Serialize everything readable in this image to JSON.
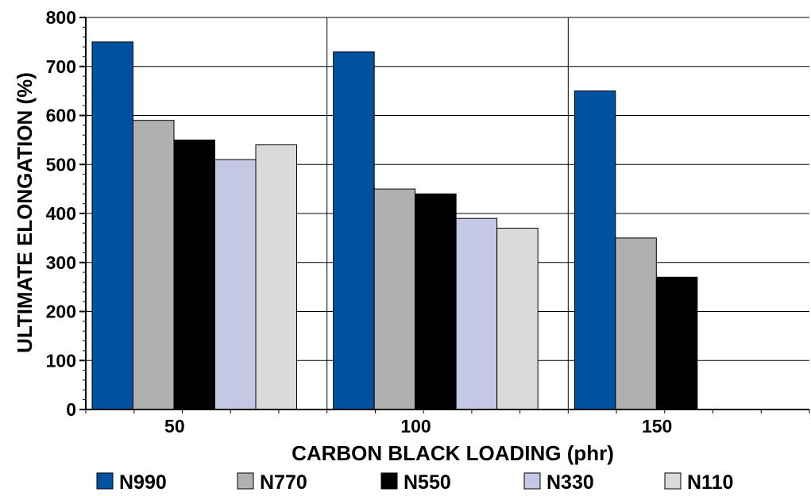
{
  "chart_data": {
    "type": "bar",
    "title": "",
    "xlabel": "CARBON BLACK LOADING (phr)",
    "ylabel": "ULTIMATE ELONGATION (%)",
    "ylim": [
      0,
      800
    ],
    "yticks": [
      0,
      100,
      200,
      300,
      400,
      500,
      600,
      700,
      800
    ],
    "categories": [
      "50",
      "100",
      "150"
    ],
    "grid": true,
    "legend_position": "bottom",
    "series": [
      {
        "name": "N990",
        "color": "#00519f",
        "values": [
          750,
          730,
          650
        ]
      },
      {
        "name": "N770",
        "color": "#b0b0b0",
        "values": [
          590,
          450,
          350
        ]
      },
      {
        "name": "N550",
        "color": "#000000",
        "values": [
          550,
          440,
          270
        ]
      },
      {
        "name": "N330",
        "color": "#c4c8e4",
        "values": [
          510,
          390,
          null
        ]
      },
      {
        "name": "N110",
        "color": "#dadada",
        "values": [
          540,
          370,
          null
        ]
      }
    ]
  }
}
